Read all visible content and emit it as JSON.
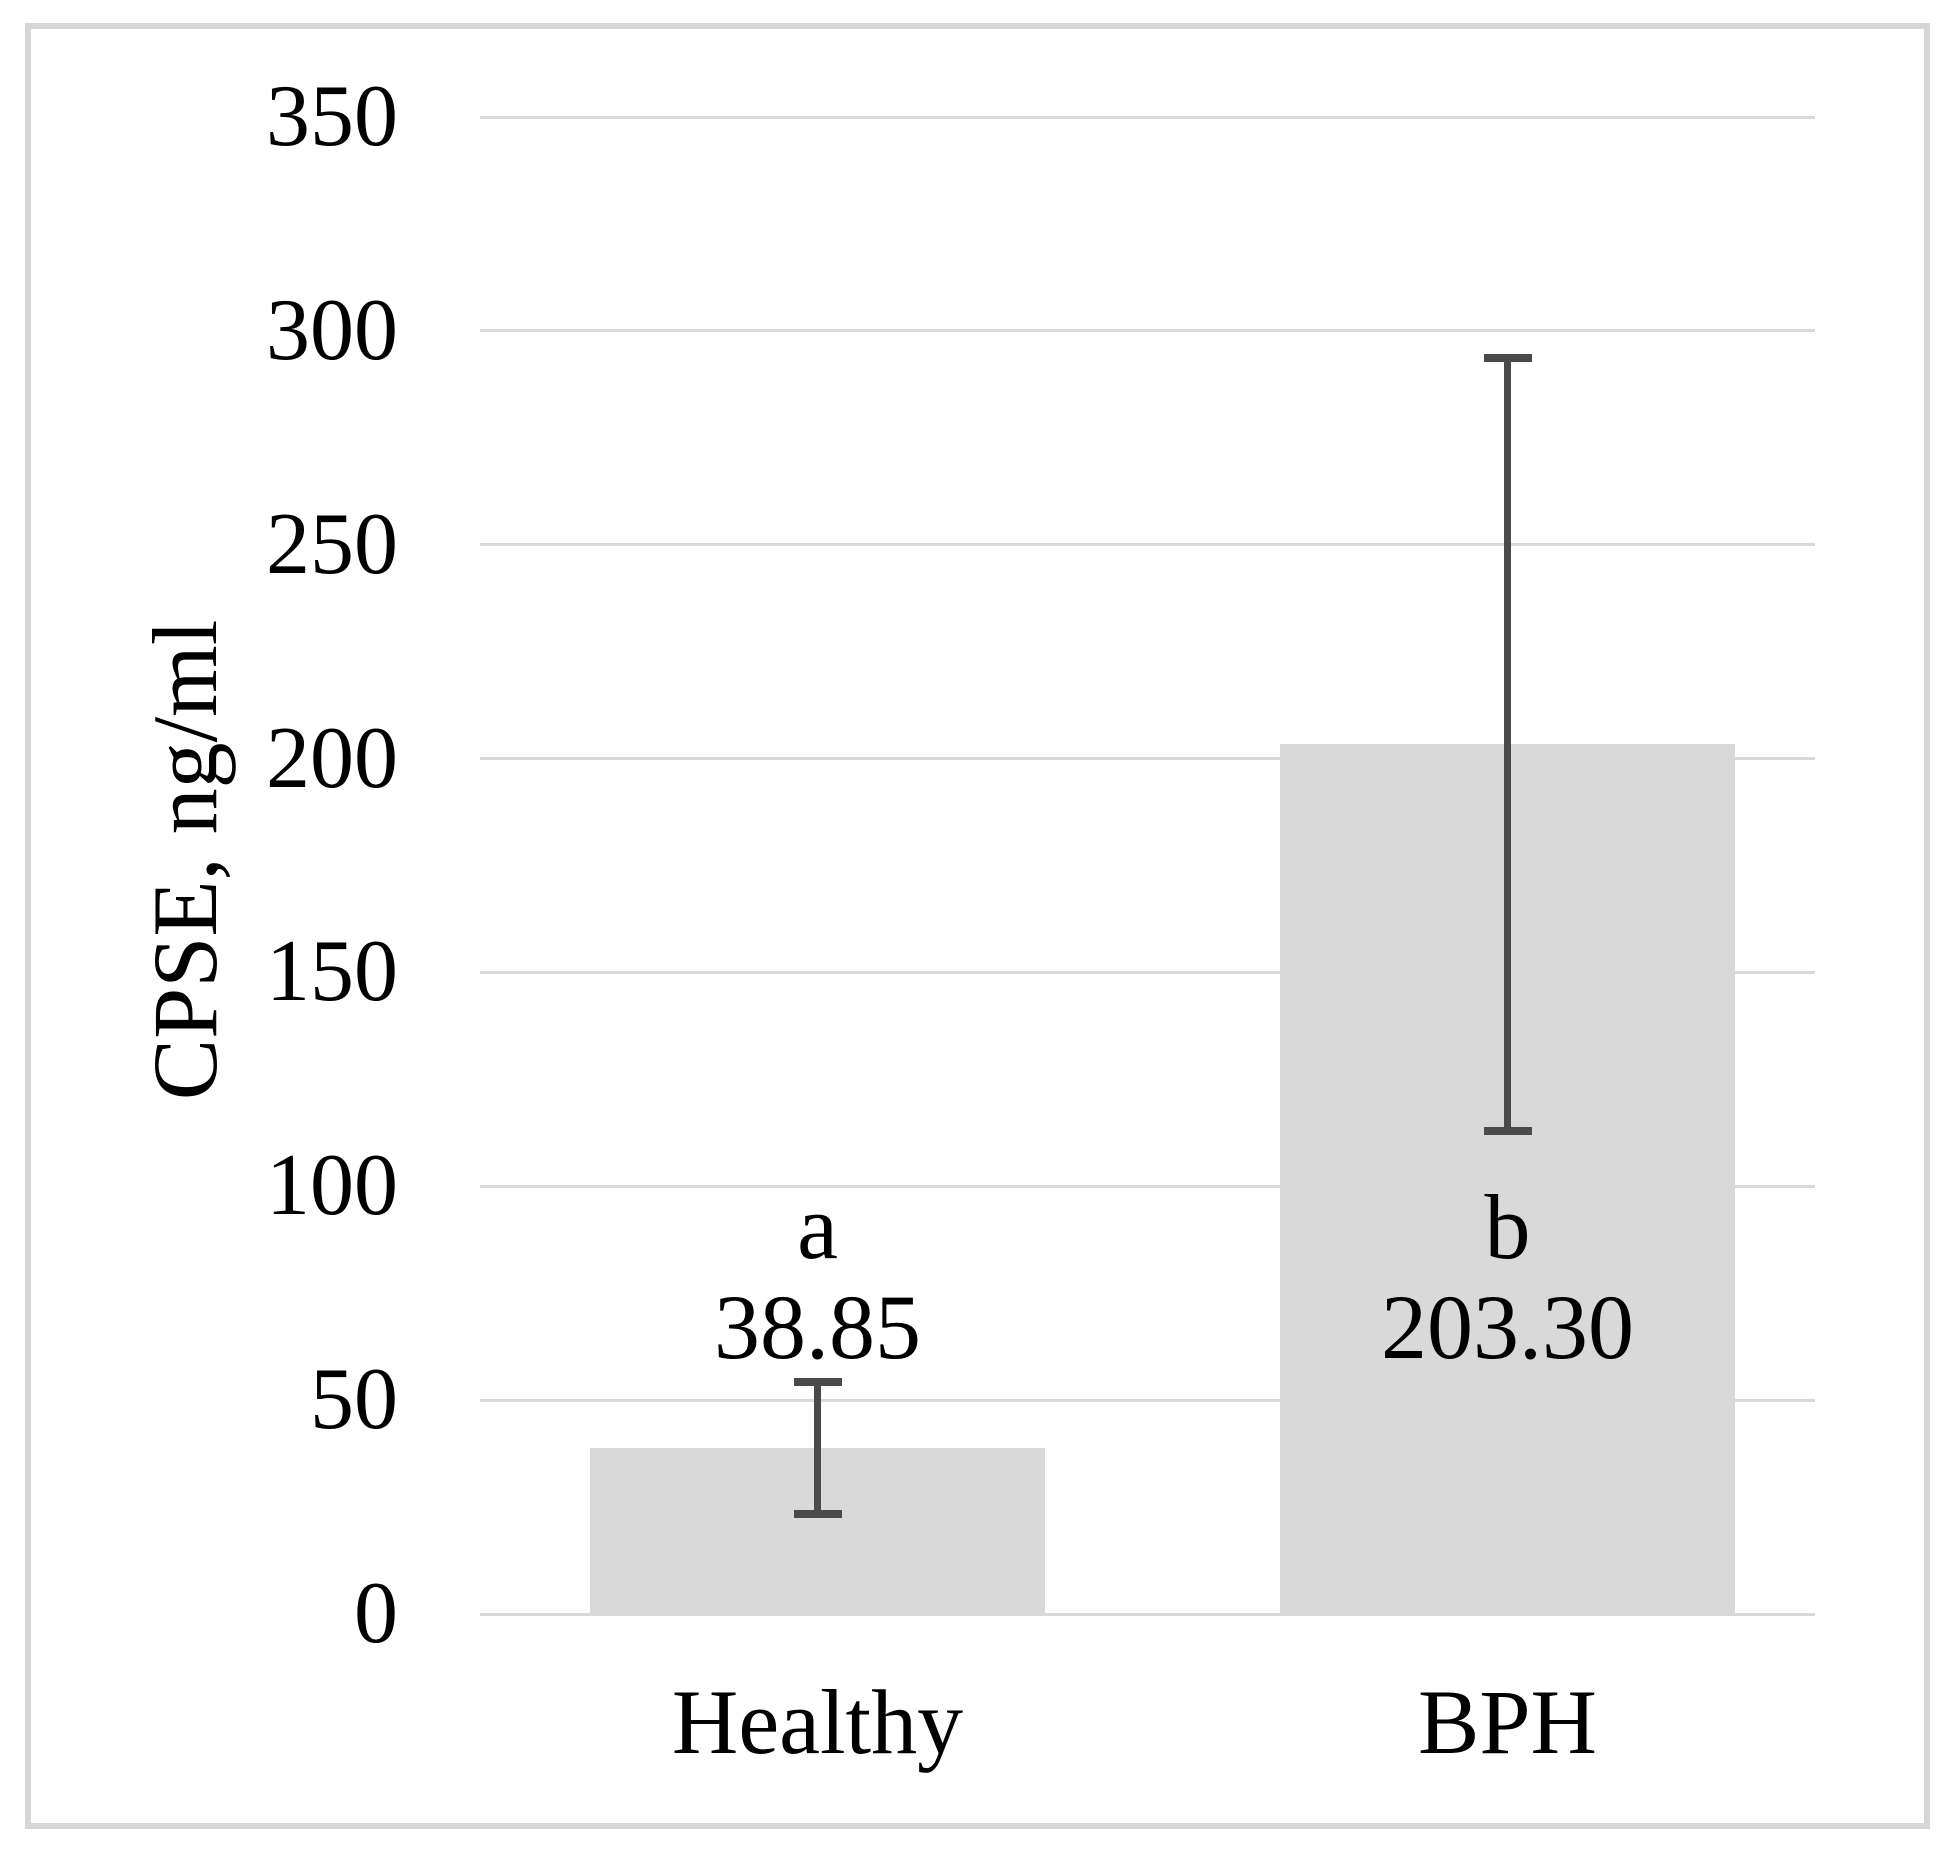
{
  "chart_data": {
    "type": "bar",
    "title": "",
    "xlabel": "",
    "ylabel": "CPSE, ng/ml",
    "ylim": [
      0,
      350
    ],
    "ytick_interval": 50,
    "yticks": [
      0,
      50,
      100,
      150,
      200,
      250,
      300,
      350
    ],
    "grid": true,
    "legend_position": "none",
    "categories": [
      "Healthy",
      "BPH"
    ],
    "values": [
      38.85,
      203.3
    ],
    "value_labels": [
      "38.85",
      "203.30"
    ],
    "significance_letters": [
      "a",
      "b"
    ],
    "error_low": [
      23.4,
      113.0
    ],
    "error_high": [
      54.3,
      293.6
    ],
    "bar_color": "#d9d9d9",
    "gridline_color": "#d9d9d9",
    "error_bar_color": "#4a4a4a",
    "text_color": "#000000",
    "figure_border_color": "#d6d6d6"
  }
}
